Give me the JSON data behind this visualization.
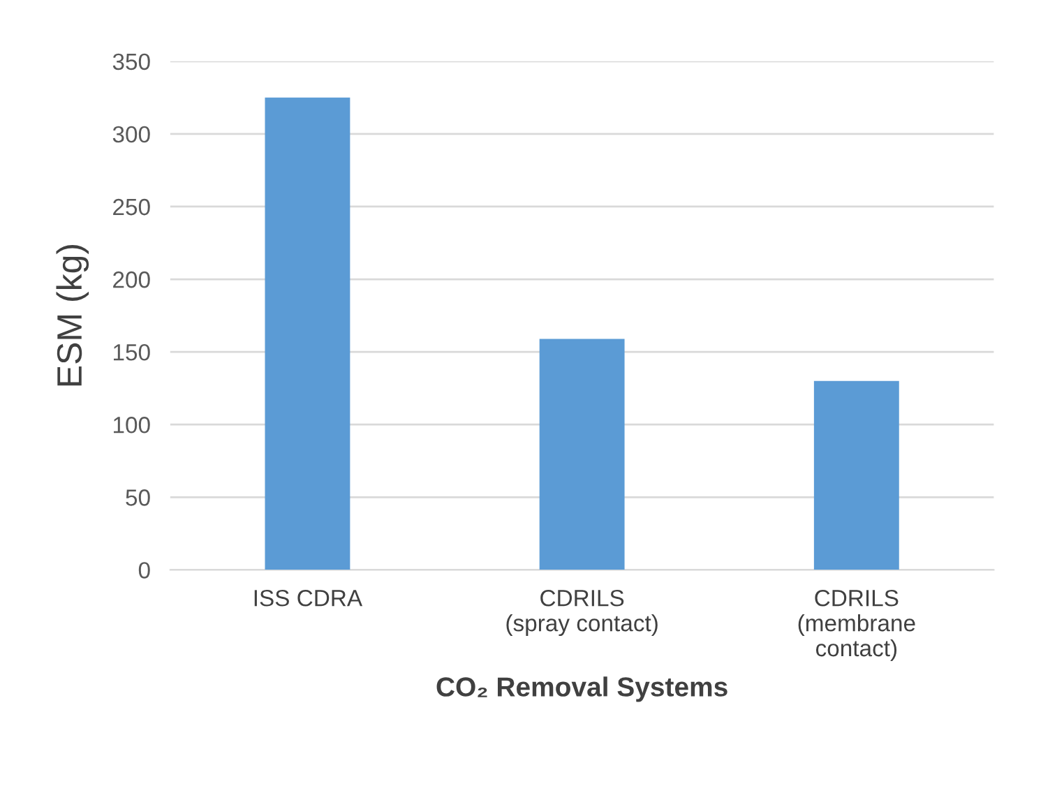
{
  "chart_data": {
    "type": "bar",
    "xlabel": "CO₂ Removal Systems",
    "ylabel": "ESM (kg)",
    "categories": [
      "ISS CDRA",
      "CDRILS\n(spray contact)",
      "CDRILS\n(membrane\ncontact)"
    ],
    "values": [
      325,
      159,
      130
    ],
    "color": "#5b9bd5",
    "ylim": [
      0,
      350
    ],
    "yticks": [
      0,
      50,
      100,
      150,
      200,
      250,
      300,
      350
    ],
    "grid": "y"
  }
}
